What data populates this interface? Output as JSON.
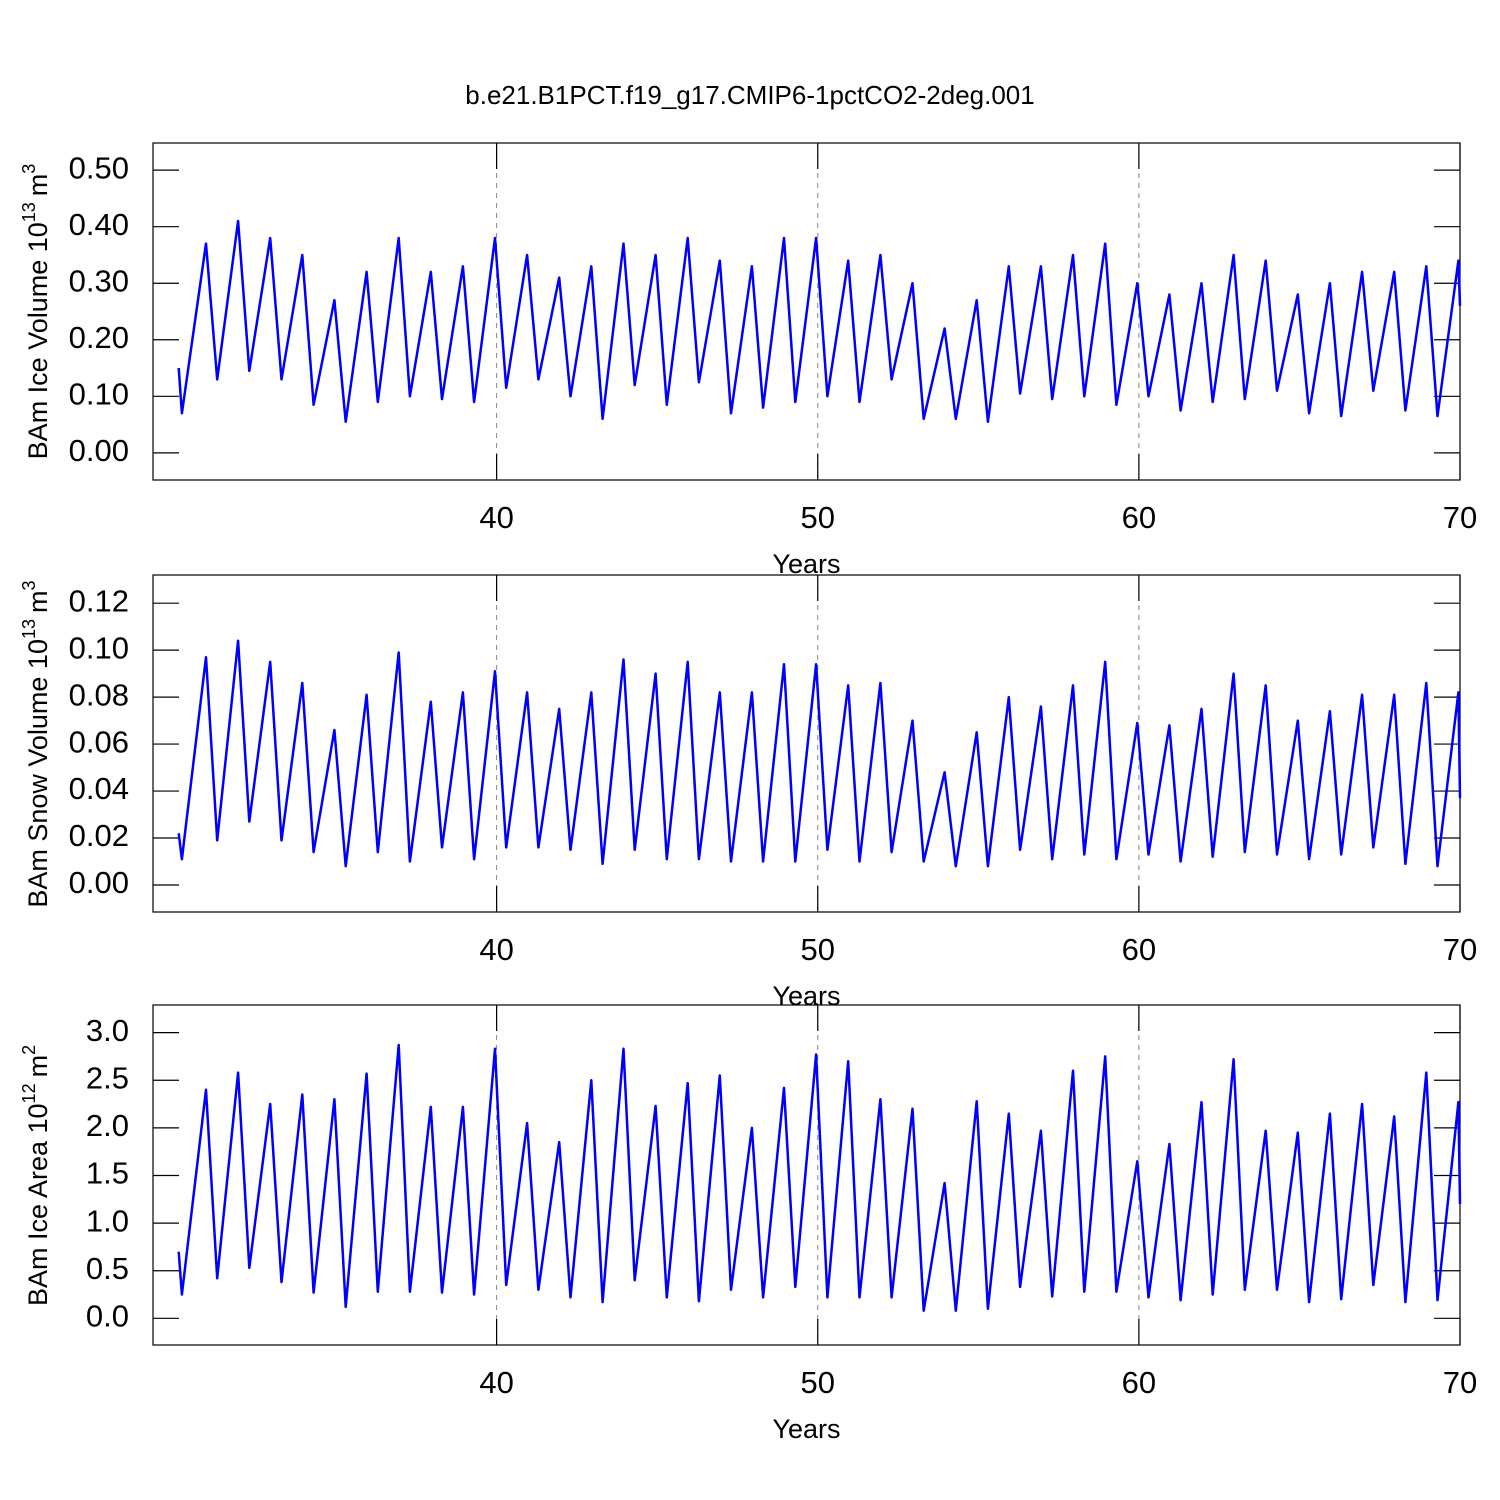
{
  "title": "b.e21.B1PCT.f19_g17.CMIP6-1pctCO2-2deg.001",
  "chart_data": [
    {
      "type": "line",
      "color": "#0000ff",
      "ylabel": {
        "text": "BAm Ice Volume 10",
        "exp": "13",
        "unit": "m",
        "unit_exp": "3"
      },
      "xlabel": "Years",
      "xlim": [
        29.3,
        70
      ],
      "xticks": [
        40,
        50,
        60,
        70
      ],
      "grid": "x-dashed",
      "ylim": [
        -0.048,
        0.548
      ],
      "yticks": [
        {
          "value": 0,
          "label": "0.00"
        },
        {
          "value": 0.1,
          "label": "0.10"
        },
        {
          "value": 0.2,
          "label": "0.20"
        },
        {
          "value": 0.3,
          "label": "0.30"
        },
        {
          "value": 0.4,
          "label": "0.40"
        },
        {
          "value": 0.5,
          "label": "0.50"
        }
      ],
      "x": [
        30.1,
        30.2,
        30.95,
        31.3,
        31.95,
        32.3,
        32.95,
        33.3,
        33.95,
        34.3,
        34.95,
        35.3,
        35.95,
        36.3,
        36.95,
        37.3,
        37.95,
        38.3,
        38.95,
        39.3,
        39.95,
        40.3,
        40.95,
        41.3,
        41.95,
        42.3,
        42.95,
        43.3,
        43.95,
        44.3,
        44.95,
        45.3,
        45.95,
        46.3,
        46.95,
        47.3,
        47.95,
        48.3,
        48.95,
        49.3,
        49.95,
        50.3,
        50.95,
        51.3,
        51.95,
        52.3,
        52.95,
        53.3,
        53.95,
        54.3,
        54.95,
        55.3,
        55.95,
        56.3,
        56.95,
        57.3,
        57.95,
        58.3,
        58.95,
        59.3,
        59.95,
        60.3,
        60.95,
        61.3,
        61.95,
        62.3,
        62.95,
        63.3,
        63.95,
        64.3,
        64.95,
        65.3,
        65.95,
        66.3,
        66.95,
        67.3,
        67.95,
        68.3,
        68.95,
        69.3,
        69.95,
        70.0
      ],
      "values": [
        0.15,
        0.07,
        0.37,
        0.13,
        0.41,
        0.145,
        0.38,
        0.13,
        0.35,
        0.085,
        0.27,
        0.055,
        0.32,
        0.09,
        0.38,
        0.1,
        0.32,
        0.095,
        0.33,
        0.09,
        0.38,
        0.115,
        0.35,
        0.13,
        0.31,
        0.1,
        0.33,
        0.06,
        0.37,
        0.12,
        0.35,
        0.085,
        0.38,
        0.125,
        0.34,
        0.07,
        0.33,
        0.08,
        0.38,
        0.09,
        0.38,
        0.1,
        0.34,
        0.09,
        0.35,
        0.13,
        0.3,
        0.06,
        0.22,
        0.06,
        0.27,
        0.055,
        0.33,
        0.105,
        0.33,
        0.095,
        0.35,
        0.1,
        0.37,
        0.085,
        0.3,
        0.1,
        0.28,
        0.075,
        0.3,
        0.09,
        0.35,
        0.095,
        0.34,
        0.11,
        0.28,
        0.07,
        0.3,
        0.065,
        0.32,
        0.11,
        0.32,
        0.075,
        0.33,
        0.065,
        0.34,
        0.26
      ]
    },
    {
      "type": "line",
      "color": "#0000ff",
      "ylabel": {
        "text": "BAm Snow Volume 10",
        "exp": "13",
        "unit": "m",
        "unit_exp": "3"
      },
      "xlabel": "Years",
      "xlim": [
        29.3,
        70
      ],
      "xticks": [
        40,
        50,
        60,
        70
      ],
      "grid": "x-dashed",
      "ylim": [
        -0.0115,
        0.132
      ],
      "yticks": [
        {
          "value": 0,
          "label": "0.00"
        },
        {
          "value": 0.02,
          "label": "0.02"
        },
        {
          "value": 0.04,
          "label": "0.04"
        },
        {
          "value": 0.06,
          "label": "0.06"
        },
        {
          "value": 0.08,
          "label": "0.08"
        },
        {
          "value": 0.1,
          "label": "0.10"
        },
        {
          "value": 0.12,
          "label": "0.12"
        }
      ],
      "x": [
        30.1,
        30.2,
        30.95,
        31.3,
        31.95,
        32.3,
        32.95,
        33.3,
        33.95,
        34.3,
        34.95,
        35.3,
        35.95,
        36.3,
        36.95,
        37.3,
        37.95,
        38.3,
        38.95,
        39.3,
        39.95,
        40.3,
        40.95,
        41.3,
        41.95,
        42.3,
        42.95,
        43.3,
        43.95,
        44.3,
        44.95,
        45.3,
        45.95,
        46.3,
        46.95,
        47.3,
        47.95,
        48.3,
        48.95,
        49.3,
        49.95,
        50.3,
        50.95,
        51.3,
        51.95,
        52.3,
        52.95,
        53.3,
        53.95,
        54.3,
        54.95,
        55.3,
        55.95,
        56.3,
        56.95,
        57.3,
        57.95,
        58.3,
        58.95,
        59.3,
        59.95,
        60.3,
        60.95,
        61.3,
        61.95,
        62.3,
        62.95,
        63.3,
        63.95,
        64.3,
        64.95,
        65.3,
        65.95,
        66.3,
        66.95,
        67.3,
        67.95,
        68.3,
        68.95,
        69.3,
        69.95,
        70.0
      ],
      "values": [
        0.022,
        0.011,
        0.097,
        0.019,
        0.104,
        0.027,
        0.095,
        0.019,
        0.086,
        0.014,
        0.066,
        0.008,
        0.081,
        0.014,
        0.099,
        0.01,
        0.078,
        0.016,
        0.082,
        0.011,
        0.091,
        0.016,
        0.082,
        0.016,
        0.075,
        0.015,
        0.082,
        0.009,
        0.096,
        0.015,
        0.09,
        0.011,
        0.095,
        0.011,
        0.082,
        0.01,
        0.082,
        0.01,
        0.094,
        0.01,
        0.094,
        0.015,
        0.085,
        0.01,
        0.086,
        0.014,
        0.07,
        0.01,
        0.048,
        0.008,
        0.065,
        0.008,
        0.08,
        0.015,
        0.076,
        0.011,
        0.085,
        0.013,
        0.095,
        0.011,
        0.069,
        0.013,
        0.068,
        0.01,
        0.075,
        0.012,
        0.09,
        0.014,
        0.085,
        0.013,
        0.07,
        0.011,
        0.074,
        0.013,
        0.081,
        0.016,
        0.081,
        0.009,
        0.086,
        0.008,
        0.082,
        0.037
      ]
    },
    {
      "type": "line",
      "color": "#0000ff",
      "ylabel": {
        "text": "BAm Ice Area 10",
        "exp": "12",
        "unit": "m",
        "unit_exp": "2"
      },
      "xlabel": "Years",
      "xlim": [
        29.3,
        70
      ],
      "xticks": [
        40,
        50,
        60,
        70
      ],
      "grid": "x-dashed",
      "ylim": [
        -0.28,
        3.29
      ],
      "yticks": [
        {
          "value": 0,
          "label": "0.0"
        },
        {
          "value": 0.5,
          "label": "0.5"
        },
        {
          "value": 1,
          "label": "1.0"
        },
        {
          "value": 1.5,
          "label": "1.5"
        },
        {
          "value": 2,
          "label": "2.0"
        },
        {
          "value": 2.5,
          "label": "2.5"
        },
        {
          "value": 3,
          "label": "3.0"
        }
      ],
      "x": [
        30.1,
        30.2,
        30.95,
        31.3,
        31.95,
        32.3,
        32.95,
        33.3,
        33.95,
        34.3,
        34.95,
        35.3,
        35.95,
        36.3,
        36.95,
        37.3,
        37.95,
        38.3,
        38.95,
        39.3,
        39.95,
        40.3,
        40.95,
        41.3,
        41.95,
        42.3,
        42.95,
        43.3,
        43.95,
        44.3,
        44.95,
        45.3,
        45.95,
        46.3,
        46.95,
        47.3,
        47.95,
        48.3,
        48.95,
        49.3,
        49.95,
        50.3,
        50.95,
        51.3,
        51.95,
        52.3,
        52.95,
        53.3,
        53.95,
        54.3,
        54.95,
        55.3,
        55.95,
        56.3,
        56.95,
        57.3,
        57.95,
        58.3,
        58.95,
        59.3,
        59.95,
        60.3,
        60.95,
        61.3,
        61.95,
        62.3,
        62.95,
        63.3,
        63.95,
        64.3,
        64.95,
        65.3,
        65.95,
        66.3,
        66.95,
        67.3,
        67.95,
        68.3,
        68.95,
        69.3,
        69.95,
        70.0
      ],
      "values": [
        0.7,
        0.25,
        2.4,
        0.42,
        2.58,
        0.53,
        2.25,
        0.38,
        2.35,
        0.27,
        2.3,
        0.12,
        2.57,
        0.28,
        2.87,
        0.28,
        2.22,
        0.27,
        2.22,
        0.25,
        2.83,
        0.35,
        2.05,
        0.3,
        1.85,
        0.22,
        2.5,
        0.17,
        2.83,
        0.4,
        2.23,
        0.22,
        2.47,
        0.18,
        2.55,
        0.3,
        2.0,
        0.22,
        2.42,
        0.33,
        2.77,
        0.22,
        2.7,
        0.22,
        2.3,
        0.22,
        2.2,
        0.08,
        1.42,
        0.08,
        2.28,
        0.1,
        2.15,
        0.33,
        1.97,
        0.23,
        2.6,
        0.28,
        2.75,
        0.28,
        1.65,
        0.22,
        1.83,
        0.19,
        2.27,
        0.25,
        2.72,
        0.3,
        1.97,
        0.3,
        1.95,
        0.17,
        2.15,
        0.2,
        2.25,
        0.35,
        2.12,
        0.17,
        2.58,
        0.19,
        2.27,
        1.2
      ]
    }
  ]
}
